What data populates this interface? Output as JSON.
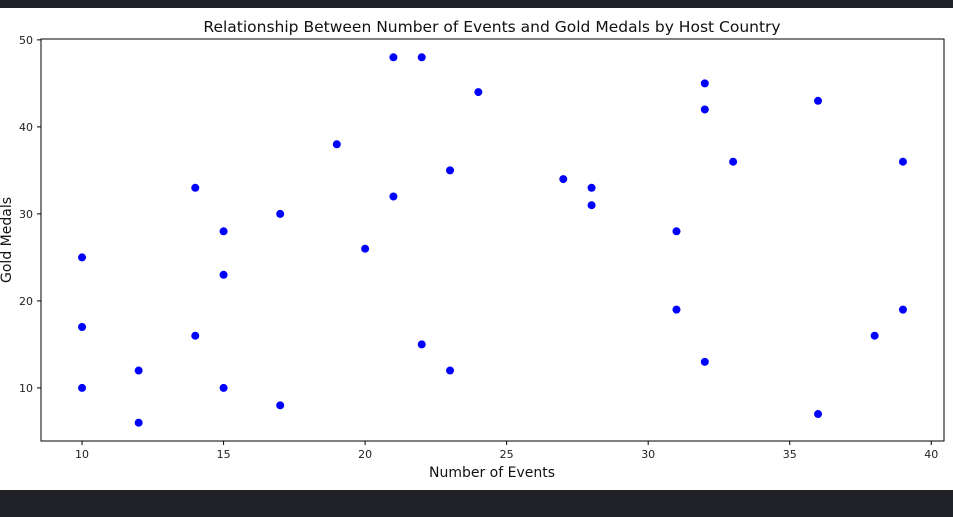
{
  "chart_data": {
    "type": "scatter",
    "title": "Relationship Between Number of Events and Gold Medals by Host Country",
    "xlabel": "Number of Events",
    "ylabel": "Gold Medals",
    "xlim": [
      8.55,
      40.45
    ],
    "ylim": [
      3.9,
      50.1
    ],
    "xticks": [
      10,
      15,
      20,
      25,
      30,
      35,
      40
    ],
    "yticks": [
      10,
      20,
      30,
      40,
      50
    ],
    "grid": false,
    "marker_color": "#0000ff",
    "points": [
      {
        "x": 10,
        "y": 25
      },
      {
        "x": 10,
        "y": 17
      },
      {
        "x": 10,
        "y": 10
      },
      {
        "x": 12,
        "y": 12
      },
      {
        "x": 12,
        "y": 6
      },
      {
        "x": 14,
        "y": 33
      },
      {
        "x": 14,
        "y": 16
      },
      {
        "x": 15,
        "y": 28
      },
      {
        "x": 15,
        "y": 23
      },
      {
        "x": 15,
        "y": 10
      },
      {
        "x": 17,
        "y": 30
      },
      {
        "x": 17,
        "y": 8
      },
      {
        "x": 19,
        "y": 38
      },
      {
        "x": 20,
        "y": 26
      },
      {
        "x": 21,
        "y": 48
      },
      {
        "x": 21,
        "y": 32
      },
      {
        "x": 22,
        "y": 48
      },
      {
        "x": 22,
        "y": 15
      },
      {
        "x": 23,
        "y": 35
      },
      {
        "x": 23,
        "y": 12
      },
      {
        "x": 24,
        "y": 44
      },
      {
        "x": 27,
        "y": 34
      },
      {
        "x": 28,
        "y": 33
      },
      {
        "x": 28,
        "y": 31
      },
      {
        "x": 31,
        "y": 28
      },
      {
        "x": 31,
        "y": 19
      },
      {
        "x": 32,
        "y": 45
      },
      {
        "x": 32,
        "y": 42
      },
      {
        "x": 32,
        "y": 13
      },
      {
        "x": 33,
        "y": 36
      },
      {
        "x": 36,
        "y": 43
      },
      {
        "x": 36,
        "y": 7
      },
      {
        "x": 38,
        "y": 16
      },
      {
        "x": 39,
        "y": 36
      },
      {
        "x": 39,
        "y": 19
      }
    ]
  }
}
